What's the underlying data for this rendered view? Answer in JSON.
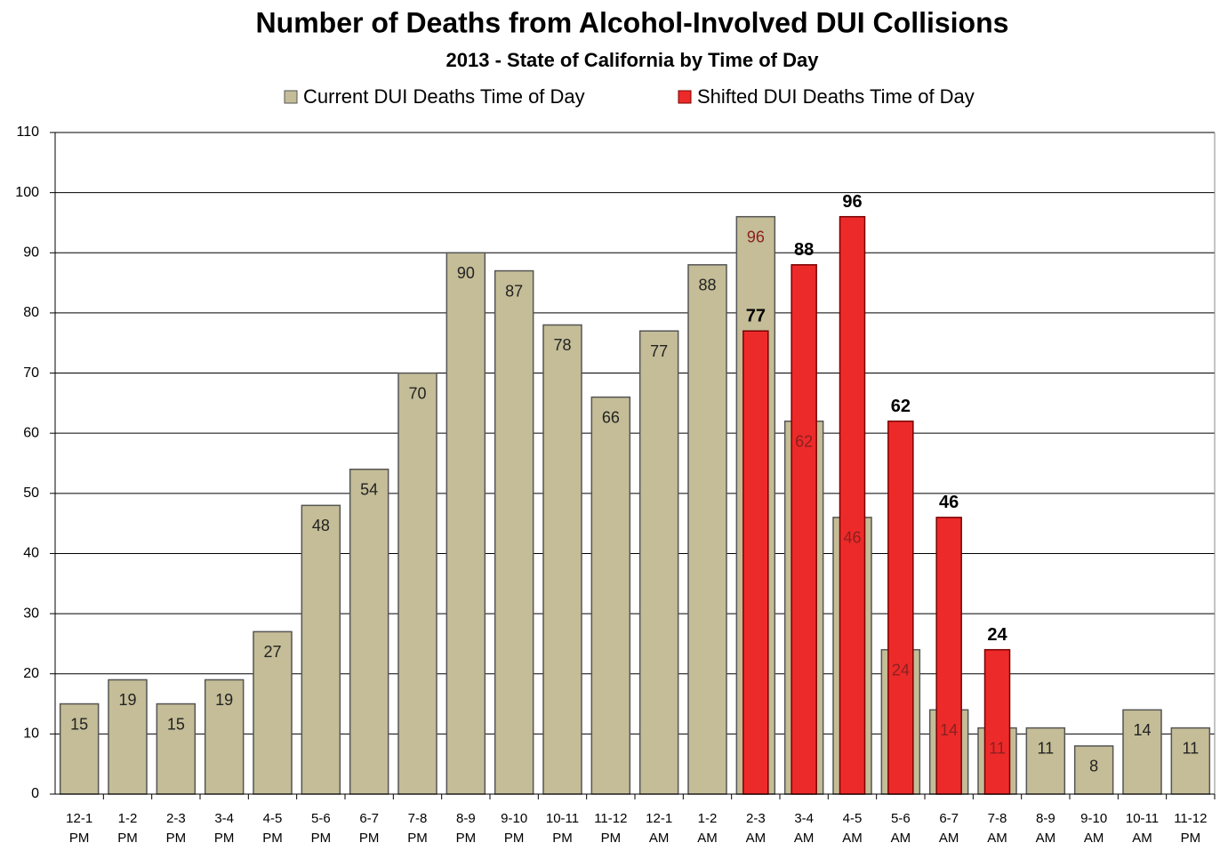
{
  "chart_data": {
    "type": "bar",
    "title": "Number of Deaths from Alcohol-Involved DUI Collisions",
    "subtitle": "2013 - State of California by Time of Day",
    "categories": [
      "12-1 PM",
      "1-2 PM",
      "2-3 PM",
      "3-4 PM",
      "4-5 PM",
      "5-6 PM",
      "6-7 PM",
      "7-8 PM",
      "8-9 PM",
      "9-10 PM",
      "10-11 PM",
      "11-12 PM",
      "12-1 AM",
      "1-2 AM",
      "2-3 AM",
      "3-4 AM",
      "4-5 AM",
      "5-6 AM",
      "6-7 AM",
      "7-8 AM",
      "8-9 AM",
      "9-10 AM",
      "10-11 AM",
      "11-12 PM"
    ],
    "series": [
      {
        "name": "Current DUI Deaths Time of Day",
        "color": "#c4bd97",
        "values": [
          15,
          19,
          15,
          19,
          27,
          48,
          54,
          70,
          90,
          87,
          78,
          66,
          77,
          88,
          96,
          62,
          46,
          24,
          14,
          11,
          11,
          8,
          14,
          11
        ]
      },
      {
        "name": "Shifted DUI Deaths Time of Day",
        "color": "#ed2a2a",
        "values": [
          null,
          null,
          null,
          null,
          null,
          null,
          null,
          null,
          null,
          null,
          null,
          null,
          null,
          null,
          77,
          88,
          96,
          62,
          46,
          24,
          null,
          null,
          null,
          null
        ]
      }
    ],
    "ylim": [
      0,
      110
    ],
    "yticks": [
      0,
      10,
      20,
      30,
      40,
      50,
      60,
      70,
      80,
      90,
      100,
      110
    ],
    "grid": true,
    "legend": "top"
  }
}
